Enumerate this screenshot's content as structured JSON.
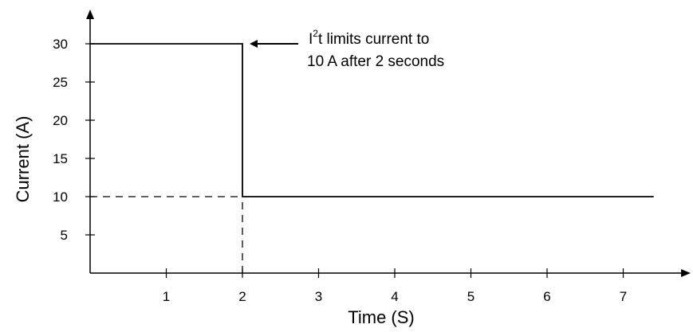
{
  "chart_data": {
    "type": "line",
    "title": "",
    "xlabel": "Time (S)",
    "ylabel": "Current (A)",
    "xlim": [
      0,
      7.75
    ],
    "ylim": [
      0,
      32.5
    ],
    "x_ticks": [
      1,
      2,
      3,
      4,
      5,
      6,
      7
    ],
    "y_ticks": [
      5,
      10,
      15,
      20,
      25,
      30
    ],
    "x_tick_labels": [
      "1",
      "2",
      "3",
      "4",
      "5",
      "6",
      "7"
    ],
    "y_tick_labels": [
      "5",
      "10",
      "15",
      "20",
      "25",
      "30"
    ],
    "grid": false,
    "series": [
      {
        "x": [
          0,
          2,
          2,
          7.4
        ],
        "y": [
          30,
          30,
          10,
          10
        ],
        "line_style": "solid",
        "color": "#000000"
      }
    ],
    "reference_lines": [
      {
        "x": [
          0,
          2
        ],
        "y": [
          10,
          10
        ],
        "line_style": "dashed"
      },
      {
        "x": [
          2,
          2
        ],
        "y": [
          0,
          10
        ],
        "line_style": "dashed"
      }
    ],
    "annotation": {
      "lines": [
        "I",
        "2",
        "t limits current to",
        "10 A after 2 seconds"
      ],
      "arrow_to": {
        "x": 2,
        "y": 30
      }
    }
  }
}
